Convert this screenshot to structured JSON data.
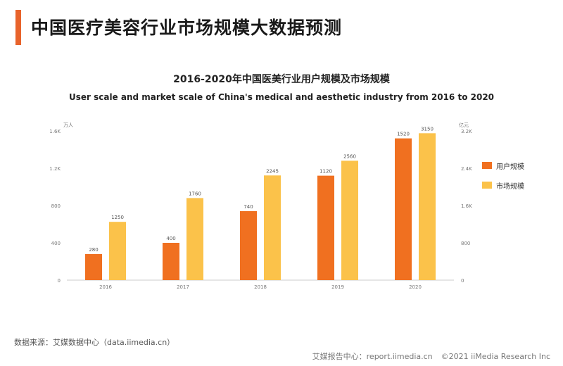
{
  "header": {
    "title": "中国医疗美容行业市场规模大数据预测"
  },
  "chart_data": {
    "type": "bar",
    "title": "2016-2020年中国医美行业用户规模及市场规模",
    "subtitle": "User scale and market scale of China's medical and aesthetic industry from 2016 to 2020",
    "categories": [
      "2016",
      "2017",
      "2018",
      "2019",
      "2020"
    ],
    "series": [
      {
        "name": "用户规模",
        "axis": "left",
        "color": "#f07020",
        "values": [
          280,
          400,
          740,
          1120,
          1520
        ]
      },
      {
        "name": "市场规模",
        "axis": "right",
        "color": "#fbc24a",
        "values": [
          1250,
          1760,
          2245,
          2560,
          3150
        ]
      }
    ],
    "left_axis": {
      "unit": "万人",
      "ylim": [
        0,
        1600
      ],
      "ticks": [
        0,
        400,
        800,
        1200,
        1600
      ],
      "tick_labels": [
        "0",
        "400",
        "800",
        "1.2K",
        "1.6K"
      ]
    },
    "right_axis": {
      "unit": "亿元",
      "ylim": [
        0,
        3200
      ],
      "ticks": [
        0,
        800,
        1600,
        2400,
        3200
      ],
      "tick_labels": [
        "0",
        "800",
        "1.6K",
        "2.4K",
        "3.2K"
      ]
    },
    "legend": "right",
    "grid": false
  },
  "source": "数据来源：艾媒数据中心（data.iimedia.cn）",
  "footer": {
    "report": "艾媒报告中心：report.iimedia.cn",
    "copyright": "©2021  iiMedia Research  Inc"
  }
}
